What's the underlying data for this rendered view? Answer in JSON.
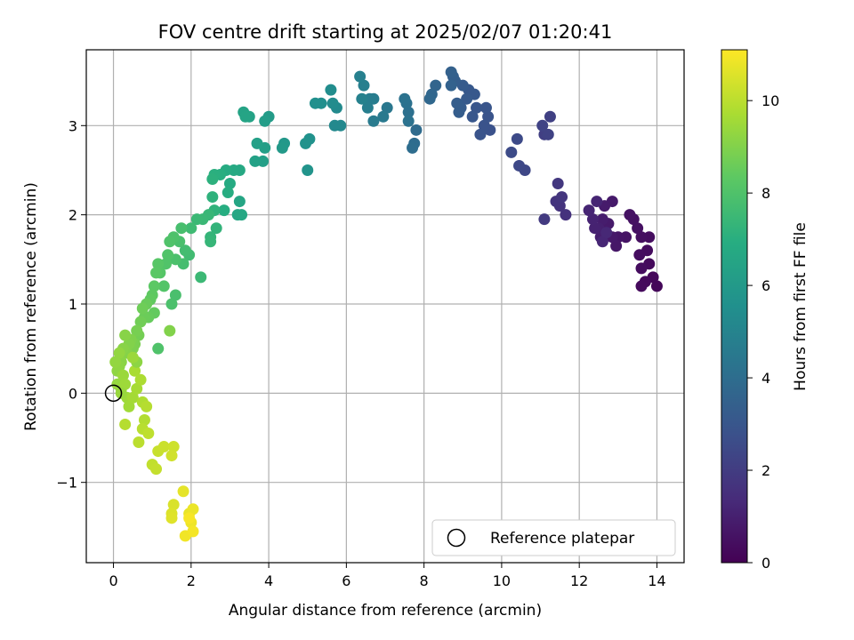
{
  "chart_data": {
    "type": "scatter",
    "title": "FOV centre drift starting at 2025/02/07 01:20:41",
    "xlabel": "Angular distance from reference (arcmin)",
    "ylabel": "Rotation from reference (arcmin)",
    "xlim": [
      -0.7,
      14.7
    ],
    "ylim": [
      -1.9,
      3.85
    ],
    "x_ticks": [
      0,
      2,
      4,
      6,
      8,
      10,
      12,
      14
    ],
    "y_ticks": [
      -1,
      0,
      1,
      2,
      3
    ],
    "x_tick_labels": [
      "0",
      "2",
      "4",
      "6",
      "8",
      "10",
      "12",
      "14"
    ],
    "y_tick_labels": [
      "−1",
      "0",
      "1",
      "2",
      "3"
    ],
    "grid": true,
    "colormap": "viridis",
    "colorbar": {
      "label": "Hours from first FF file",
      "range": [
        0,
        11.1
      ],
      "ticks": [
        0,
        2,
        4,
        6,
        8,
        10
      ],
      "tick_labels": [
        "0",
        "2",
        "4",
        "6",
        "8",
        "10"
      ]
    },
    "legend": {
      "label": "Reference platepar",
      "placement": "lower-right"
    },
    "reference_point": {
      "x": 0,
      "y": 0
    },
    "series": [
      {
        "points": [
          [
            14.0,
            1.2,
            0.2
          ],
          [
            13.9,
            1.3,
            0.2
          ],
          [
            13.7,
            1.25,
            0.25
          ],
          [
            13.6,
            1.2,
            0.3
          ],
          [
            13.8,
            1.45,
            0.3
          ],
          [
            13.6,
            1.4,
            0.35
          ],
          [
            13.75,
            1.6,
            0.35
          ],
          [
            13.55,
            1.55,
            0.4
          ],
          [
            13.8,
            1.75,
            0.4
          ],
          [
            13.6,
            1.75,
            0.45
          ],
          [
            13.5,
            1.85,
            0.5
          ],
          [
            13.4,
            1.95,
            0.5
          ],
          [
            13.3,
            2.0,
            0.55
          ],
          [
            13.2,
            1.75,
            0.6
          ],
          [
            13.0,
            1.75,
            0.65
          ],
          [
            12.95,
            1.65,
            0.7
          ],
          [
            12.85,
            1.75,
            0.75
          ],
          [
            12.75,
            1.9,
            0.8
          ],
          [
            12.85,
            2.15,
            0.8
          ],
          [
            12.65,
            2.1,
            0.85
          ],
          [
            12.6,
            1.95,
            0.9
          ],
          [
            12.55,
            1.75,
            0.95
          ],
          [
            12.5,
            1.85,
            1.0
          ],
          [
            12.4,
            1.85,
            1.05
          ],
          [
            12.35,
            1.95,
            1.1
          ],
          [
            12.25,
            2.05,
            1.15
          ],
          [
            12.45,
            2.15,
            1.15
          ],
          [
            12.6,
            1.7,
            1.2
          ],
          [
            12.7,
            1.8,
            1.25
          ],
          [
            11.65,
            2.0,
            1.6
          ],
          [
            11.5,
            2.1,
            1.65
          ],
          [
            11.4,
            2.15,
            1.7
          ],
          [
            11.55,
            2.2,
            1.75
          ],
          [
            11.45,
            2.35,
            1.8
          ],
          [
            11.1,
            1.95,
            1.9
          ],
          [
            11.1,
            2.9,
            2.1
          ],
          [
            11.25,
            3.1,
            2.15
          ],
          [
            11.2,
            2.9,
            2.2
          ],
          [
            11.05,
            3.0,
            2.25
          ],
          [
            10.6,
            2.5,
            2.4
          ],
          [
            10.45,
            2.55,
            2.45
          ],
          [
            10.4,
            2.85,
            2.5
          ],
          [
            10.25,
            2.7,
            2.55
          ],
          [
            9.7,
            2.95,
            2.8
          ],
          [
            9.55,
            3.0,
            2.85
          ],
          [
            9.45,
            2.9,
            2.9
          ],
          [
            9.65,
            3.1,
            2.9
          ],
          [
            9.6,
            3.2,
            2.95
          ],
          [
            9.35,
            3.2,
            3.0
          ],
          [
            9.25,
            3.1,
            3.05
          ],
          [
            9.3,
            3.35,
            3.1
          ],
          [
            9.15,
            3.4,
            3.1
          ],
          [
            9.1,
            3.3,
            3.15
          ],
          [
            9.0,
            3.45,
            3.2
          ],
          [
            8.95,
            3.2,
            3.25
          ],
          [
            8.9,
            3.15,
            3.3
          ],
          [
            8.85,
            3.25,
            3.3
          ],
          [
            8.8,
            3.5,
            3.35
          ],
          [
            8.75,
            3.55,
            3.4
          ],
          [
            8.7,
            3.6,
            3.45
          ],
          [
            8.7,
            3.45,
            3.5
          ],
          [
            8.3,
            3.45,
            3.65
          ],
          [
            8.2,
            3.35,
            3.7
          ],
          [
            8.15,
            3.3,
            3.75
          ],
          [
            7.8,
            2.95,
            3.9
          ],
          [
            7.75,
            2.8,
            3.95
          ],
          [
            7.7,
            2.75,
            4.0
          ],
          [
            7.6,
            3.15,
            4.1
          ],
          [
            7.55,
            3.25,
            4.15
          ],
          [
            7.5,
            3.3,
            4.2
          ],
          [
            7.6,
            3.05,
            4.2
          ],
          [
            7.05,
            3.2,
            4.45
          ],
          [
            6.95,
            3.1,
            4.5
          ],
          [
            6.7,
            3.05,
            4.6
          ],
          [
            6.7,
            3.3,
            4.65
          ],
          [
            6.6,
            3.3,
            4.7
          ],
          [
            6.55,
            3.2,
            4.75
          ],
          [
            6.45,
            3.45,
            4.8
          ],
          [
            6.35,
            3.55,
            4.85
          ],
          [
            6.4,
            3.3,
            4.9
          ],
          [
            5.85,
            3.0,
            5.2
          ],
          [
            5.7,
            3.0,
            5.25
          ],
          [
            5.75,
            3.2,
            5.3
          ],
          [
            5.65,
            3.25,
            5.35
          ],
          [
            5.6,
            3.4,
            5.4
          ],
          [
            5.35,
            3.25,
            5.5
          ],
          [
            5.2,
            3.25,
            5.55
          ],
          [
            5.05,
            2.85,
            5.65
          ],
          [
            4.95,
            2.8,
            5.7
          ],
          [
            5.0,
            2.5,
            5.75
          ],
          [
            4.4,
            2.8,
            5.95
          ],
          [
            4.35,
            2.75,
            6.0
          ],
          [
            4.0,
            3.1,
            6.1
          ],
          [
            3.9,
            3.05,
            6.15
          ],
          [
            3.9,
            2.75,
            6.2
          ],
          [
            3.85,
            2.6,
            6.25
          ],
          [
            3.7,
            2.8,
            6.3
          ],
          [
            3.65,
            2.6,
            6.35
          ],
          [
            3.5,
            3.1,
            6.4
          ],
          [
            3.35,
            3.15,
            6.45
          ],
          [
            3.4,
            3.1,
            6.5
          ],
          [
            3.25,
            2.15,
            6.55
          ],
          [
            3.2,
            2.0,
            6.6
          ],
          [
            3.3,
            2.0,
            6.65
          ],
          [
            3.25,
            2.5,
            6.7
          ],
          [
            3.1,
            2.5,
            6.75
          ],
          [
            3.0,
            2.35,
            6.8
          ],
          [
            2.9,
            2.5,
            6.85
          ],
          [
            2.95,
            2.25,
            6.9
          ],
          [
            2.85,
            2.05,
            6.95
          ],
          [
            2.75,
            2.45,
            7.0
          ],
          [
            2.6,
            2.45,
            7.05
          ],
          [
            2.55,
            2.4,
            7.1
          ],
          [
            2.55,
            2.2,
            7.15
          ],
          [
            2.6,
            2.05,
            7.2
          ],
          [
            2.65,
            1.85,
            7.25
          ],
          [
            2.5,
            1.75,
            7.3
          ],
          [
            2.5,
            1.7,
            7.35
          ],
          [
            2.45,
            2.0,
            7.4
          ],
          [
            2.3,
            1.95,
            7.45
          ],
          [
            2.25,
            1.3,
            7.5
          ],
          [
            2.15,
            1.95,
            7.5
          ],
          [
            2.0,
            1.85,
            7.6
          ],
          [
            1.95,
            1.55,
            7.65
          ],
          [
            1.85,
            1.6,
            7.7
          ],
          [
            1.8,
            1.45,
            7.75
          ],
          [
            1.75,
            1.85,
            7.8
          ],
          [
            1.7,
            1.7,
            7.85
          ],
          [
            1.6,
            1.5,
            7.9
          ],
          [
            1.55,
            1.75,
            7.95
          ],
          [
            1.45,
            1.7,
            8.0
          ],
          [
            1.4,
            1.55,
            8.05
          ],
          [
            1.35,
            1.45,
            8.05
          ],
          [
            1.3,
            1.2,
            8.1
          ],
          [
            1.2,
            1.35,
            8.15
          ],
          [
            1.15,
            1.45,
            8.2
          ],
          [
            1.1,
            1.35,
            8.25
          ],
          [
            1.05,
            1.2,
            8.3
          ],
          [
            1.0,
            1.1,
            8.35
          ],
          [
            0.95,
            1.05,
            8.4
          ],
          [
            1.05,
            0.9,
            8.45
          ],
          [
            0.9,
            0.85,
            8.5
          ],
          [
            0.85,
            1.0,
            8.55
          ],
          [
            0.8,
            0.85,
            8.6
          ],
          [
            0.75,
            0.95,
            8.65
          ],
          [
            0.7,
            0.8,
            8.7
          ],
          [
            0.65,
            0.65,
            8.75
          ],
          [
            0.6,
            0.7,
            8.8
          ],
          [
            0.55,
            0.55,
            8.85
          ],
          [
            0.5,
            0.5,
            8.9
          ],
          [
            0.45,
            0.6,
            8.95
          ],
          [
            0.4,
            0.55,
            9.0
          ],
          [
            0.35,
            0.45,
            9.05
          ],
          [
            0.3,
            0.65,
            9.1
          ],
          [
            0.25,
            0.5,
            9.1
          ],
          [
            0.2,
            0.35,
            9.15
          ],
          [
            0.15,
            0.3,
            9.2
          ],
          [
            0.1,
            0.25,
            9.25
          ],
          [
            0.05,
            0.35,
            9.3
          ],
          [
            0.1,
            0.1,
            9.35
          ],
          [
            0.2,
            0.05,
            9.4
          ],
          [
            0.25,
            0.2,
            9.45
          ],
          [
            0.3,
            0.1,
            9.5
          ],
          [
            0.35,
            -0.05,
            9.5
          ],
          [
            0.4,
            -0.15,
            9.55
          ],
          [
            0.5,
            -0.05,
            9.6
          ],
          [
            0.6,
            0.05,
            9.65
          ],
          [
            0.55,
            0.25,
            9.7
          ],
          [
            0.7,
            0.15,
            9.75
          ],
          [
            0.75,
            -0.1,
            9.8
          ],
          [
            0.8,
            -0.3,
            9.85
          ],
          [
            0.85,
            -0.15,
            9.9
          ],
          [
            0.75,
            -0.4,
            9.95
          ],
          [
            0.65,
            -0.55,
            10.0
          ],
          [
            0.9,
            -0.45,
            10.05
          ],
          [
            1.0,
            -0.8,
            10.1
          ],
          [
            1.1,
            -0.85,
            10.15
          ],
          [
            1.15,
            -0.65,
            10.2
          ],
          [
            1.3,
            -0.6,
            10.25
          ],
          [
            1.55,
            -0.6,
            10.3
          ],
          [
            1.5,
            -0.7,
            10.35
          ],
          [
            1.55,
            -1.25,
            10.5
          ],
          [
            1.5,
            -1.35,
            10.55
          ],
          [
            1.5,
            -1.4,
            10.6
          ],
          [
            1.8,
            -1.1,
            10.7
          ],
          [
            1.95,
            -1.35,
            10.75
          ],
          [
            2.05,
            -1.3,
            10.8
          ],
          [
            2.0,
            -1.45,
            10.85
          ],
          [
            1.85,
            -1.6,
            10.9
          ],
          [
            2.05,
            -1.55,
            10.95
          ],
          [
            1.95,
            -1.4,
            11.0
          ],
          [
            0.2,
            0.0,
            9.4
          ],
          [
            0.15,
            0.45,
            9.3
          ],
          [
            0.6,
            0.35,
            9.2
          ],
          [
            1.15,
            0.5,
            8.0
          ],
          [
            1.5,
            1.0,
            7.9
          ],
          [
            1.6,
            1.1,
            7.85
          ],
          [
            1.45,
            0.7,
            9.0
          ],
          [
            0.3,
            -0.35,
            9.9
          ],
          [
            0.5,
            0.4,
            9.45
          ]
        ]
      }
    ]
  }
}
